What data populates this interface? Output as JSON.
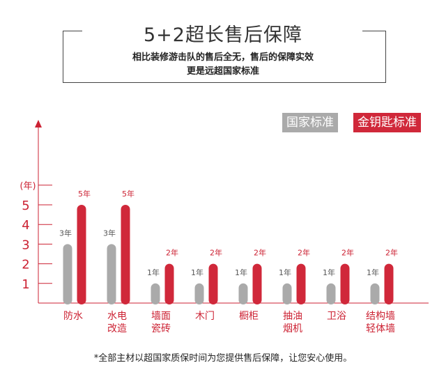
{
  "header": {
    "title": "5+2超长售后保障",
    "subtitle_line1": "相比装修游击队的售后全无，售后的保障实效",
    "subtitle_line2": "更是远超国家标准"
  },
  "legend": {
    "national": "国家标准",
    "golden_key": "金钥匙标准"
  },
  "footnote": "*全部主材以超国家质保时间为您提供售后保障，让您安心使用。",
  "colors": {
    "national": "#aaaaaa",
    "golden_key": "#d0283a",
    "axis": "#cc2233",
    "label": "#cc2233"
  },
  "chart_data": {
    "type": "bar",
    "ylabel": "(年)",
    "ylim": [
      0,
      6
    ],
    "yticks": [
      "1",
      "2",
      "3",
      "4",
      "5"
    ],
    "categories": [
      [
        "防水"
      ],
      [
        "水电",
        "改造"
      ],
      [
        "墙面",
        "瓷砖"
      ],
      [
        "木门"
      ],
      [
        "橱柜"
      ],
      [
        "抽油",
        "烟机"
      ],
      [
        "卫浴"
      ],
      [
        "结构墙",
        "轻体墙"
      ]
    ],
    "series": [
      {
        "name": "国家标准",
        "values": [
          3,
          3,
          1,
          1,
          1,
          1,
          1,
          1
        ],
        "labels": [
          "3年",
          "3年",
          "1年",
          "1年",
          "1年",
          "1年",
          "1年",
          "1年"
        ]
      },
      {
        "name": "金钥匙标准",
        "values": [
          5,
          5,
          2,
          2,
          2,
          2,
          2,
          2
        ],
        "labels": [
          "5年",
          "5年",
          "2年",
          "2年",
          "2年",
          "2年",
          "2年",
          "2年"
        ]
      }
    ]
  }
}
